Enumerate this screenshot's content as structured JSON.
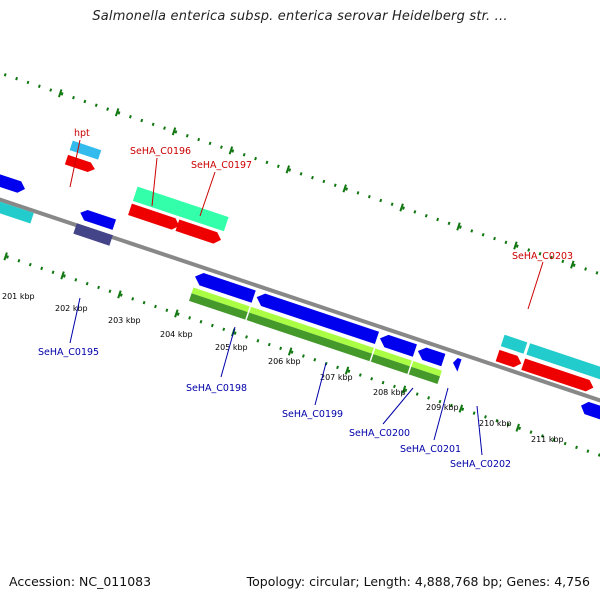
{
  "header": {
    "title": "Salmonella enterica subsp. enterica serovar Heidelberg str. ..."
  },
  "footer": {
    "accession": "Accession: NC_011083",
    "topology": "Topology: circular; Length: 4,888,768 bp; Genes: 4,756"
  },
  "scale_labels": [
    "201 kbp",
    "202 kbp",
    "203 kbp",
    "204 kbp",
    "205 kbp",
    "206 kbp",
    "207 kbp",
    "208 kbp",
    "209 kbp",
    "210 kbp",
    "211 kbp"
  ],
  "gene_labels": {
    "top": [
      "hpt",
      "SeHA_C0196",
      "SeHA_C0197",
      "SeHA_C0203"
    ],
    "bottom": [
      "SeHA_C0195",
      "SeHA_C0198",
      "SeHA_C0199",
      "SeHA_C0200",
      "SeHA_C0201",
      "SeHA_C0202"
    ]
  },
  "colors": {
    "backbone": "#808080",
    "forward_cds": "#ee0000",
    "reverse_cds": "#0000ee",
    "cyan_feature": "#22cccc",
    "teal_feature": "#33ffaa",
    "green_feature": "#55aa22",
    "tick_marks": "#117711",
    "label_red": "#cc0000",
    "label_blue": "#0000aa"
  }
}
